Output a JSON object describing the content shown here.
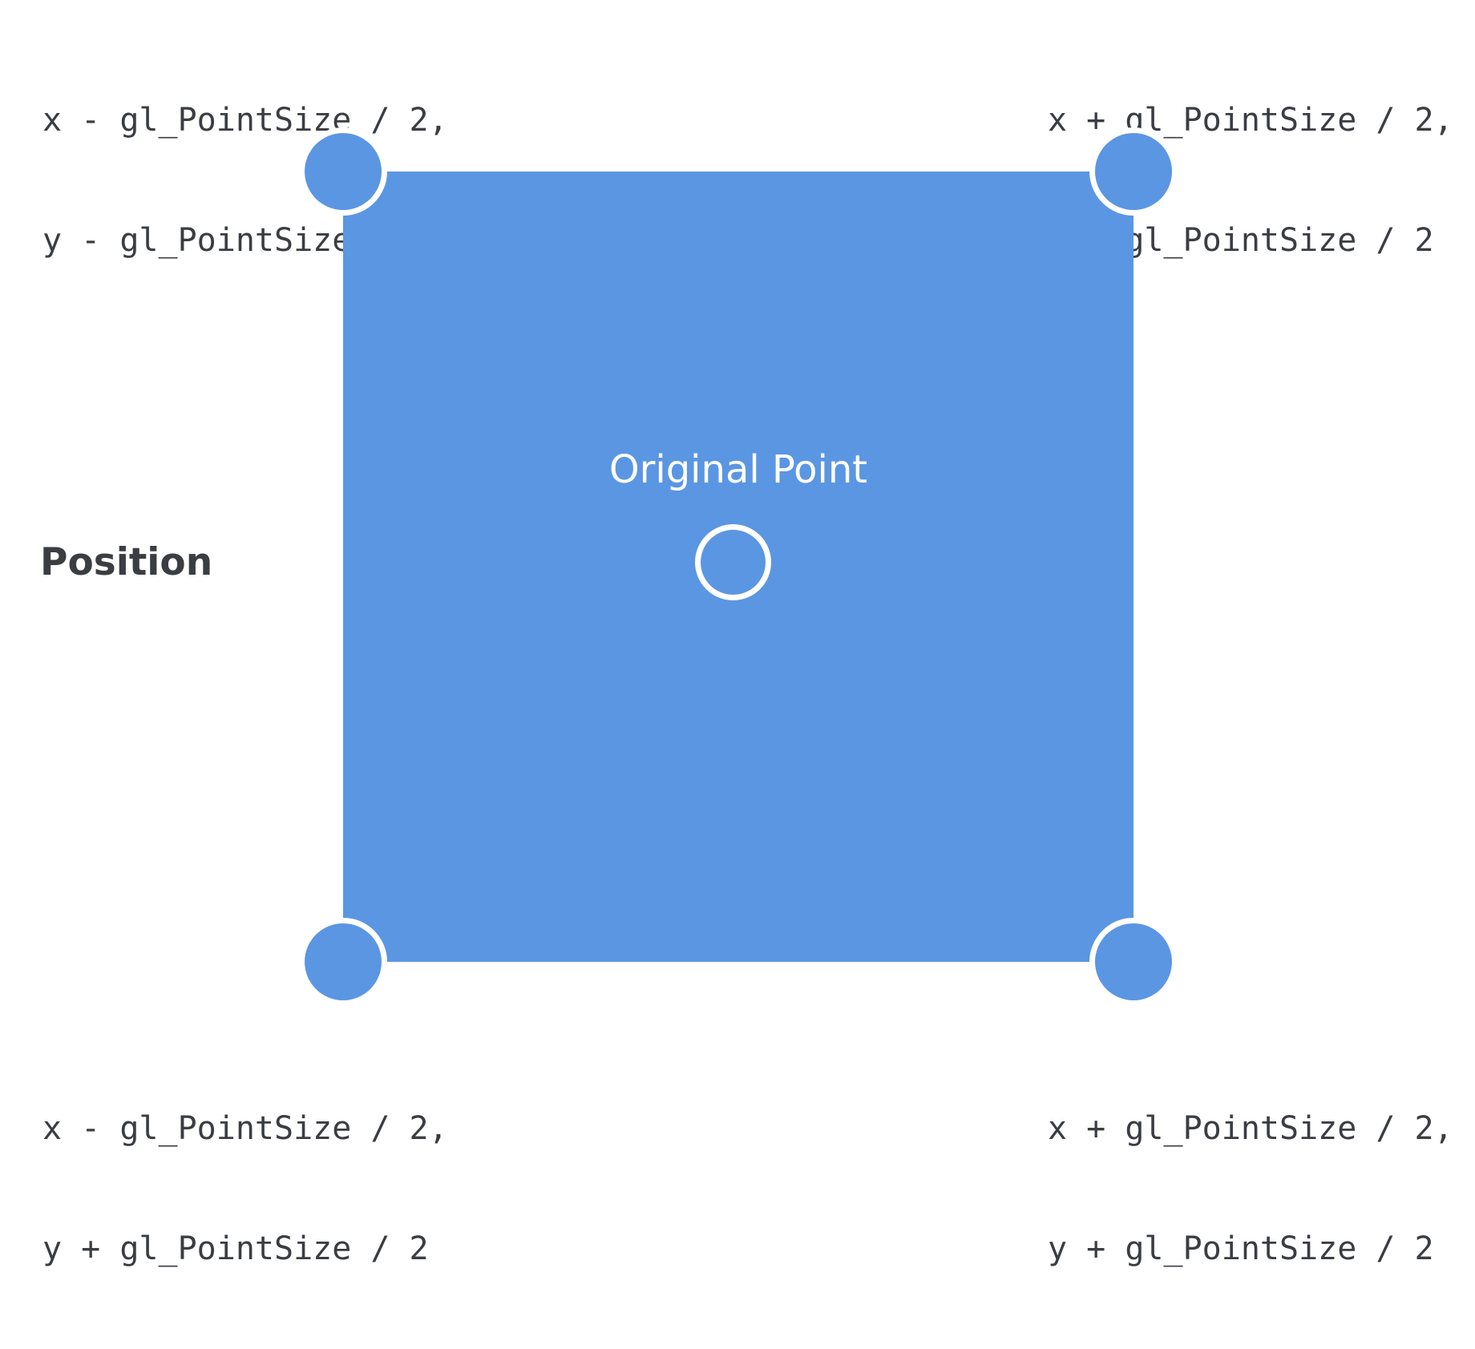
{
  "diagram": {
    "side_label": "Position",
    "center_label": "Original Point",
    "corners": {
      "top_left": {
        "line1": "x - gl_PointSize / 2,",
        "line2": "y - gl_PointSize / 2"
      },
      "top_right": {
        "line1": "x + gl_PointSize / 2,",
        "line2": "y - gl_PointSize / 2"
      },
      "bottom_left": {
        "line1": "x - gl_PointSize / 2,",
        "line2": "y + gl_PointSize / 2"
      },
      "bottom_right": {
        "line1": "x + gl_PointSize / 2,",
        "line2": "y + gl_PointSize / 2"
      }
    },
    "colors": {
      "square_fill": "#5b96e3",
      "text": "#3a3d42",
      "background": "#ffffff"
    }
  }
}
